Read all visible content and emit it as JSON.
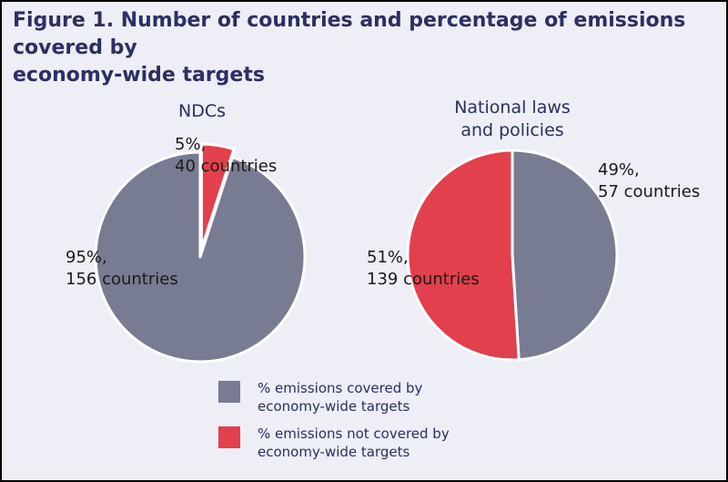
{
  "figure_title_line1": "Figure 1. Number of countries and percentage of emissions covered by",
  "figure_title_line2": "economy-wide targets",
  "colors": {
    "covered": "#787c92",
    "not_covered": "#e2404c",
    "background": "#edeef6",
    "title": "#2b2f63"
  },
  "chart_data": [
    {
      "type": "pie",
      "title": "NDCs",
      "slices": [
        {
          "category": "covered",
          "percent": 95,
          "label_line1": "95%,",
          "label_line2": "156 countries"
        },
        {
          "category": "not_covered",
          "percent": 5,
          "label_line1": "5%,",
          "label_line2": "40 countries",
          "exploded": true
        }
      ]
    },
    {
      "type": "pie",
      "title_line1": "National laws",
      "title_line2": "and policies",
      "slices": [
        {
          "category": "covered",
          "percent": 49,
          "label_line1": "49%,",
          "label_line2": "57 countries"
        },
        {
          "category": "not_covered",
          "percent": 51,
          "label_line1": "51%,",
          "label_line2": "139 countries"
        }
      ]
    }
  ],
  "legend": [
    {
      "category": "covered",
      "line1": "% emissions covered by",
      "line2": "economy-wide targets"
    },
    {
      "category": "not_covered",
      "line1": "% emissions not covered by",
      "line2": "economy-wide targets"
    }
  ]
}
